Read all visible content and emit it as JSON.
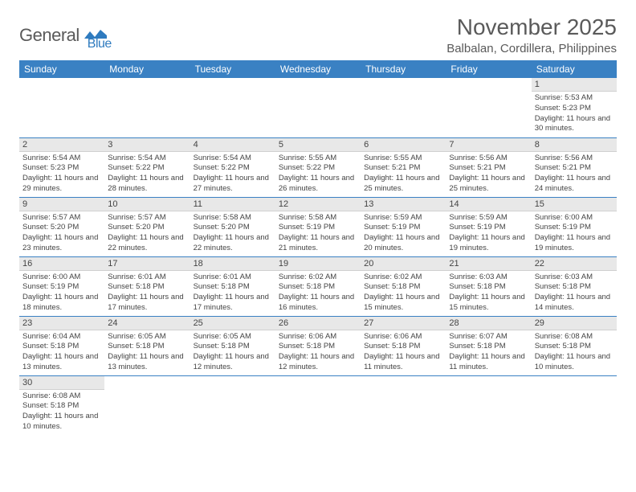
{
  "logo": {
    "text1": "General",
    "text2": "Blue",
    "flag_color": "#2f7bbf"
  },
  "title": "November 2025",
  "location": "Balbalan, Cordillera, Philippines",
  "headers": [
    "Sunday",
    "Monday",
    "Tuesday",
    "Wednesday",
    "Thursday",
    "Friday",
    "Saturday"
  ],
  "colors": {
    "header_bg": "#3a81c3",
    "header_text": "#ffffff",
    "daynum_bg": "#e8e8e8",
    "border": "#3a81c3",
    "text": "#444444",
    "title_text": "#5a5a5a"
  },
  "weeks": [
    [
      null,
      null,
      null,
      null,
      null,
      null,
      {
        "n": "1",
        "sunrise": "5:53 AM",
        "sunset": "5:23 PM",
        "dlh": "11",
        "dlm": "30"
      }
    ],
    [
      {
        "n": "2",
        "sunrise": "5:54 AM",
        "sunset": "5:23 PM",
        "dlh": "11",
        "dlm": "29"
      },
      {
        "n": "3",
        "sunrise": "5:54 AM",
        "sunset": "5:22 PM",
        "dlh": "11",
        "dlm": "28"
      },
      {
        "n": "4",
        "sunrise": "5:54 AM",
        "sunset": "5:22 PM",
        "dlh": "11",
        "dlm": "27"
      },
      {
        "n": "5",
        "sunrise": "5:55 AM",
        "sunset": "5:22 PM",
        "dlh": "11",
        "dlm": "26"
      },
      {
        "n": "6",
        "sunrise": "5:55 AM",
        "sunset": "5:21 PM",
        "dlh": "11",
        "dlm": "25"
      },
      {
        "n": "7",
        "sunrise": "5:56 AM",
        "sunset": "5:21 PM",
        "dlh": "11",
        "dlm": "25"
      },
      {
        "n": "8",
        "sunrise": "5:56 AM",
        "sunset": "5:21 PM",
        "dlh": "11",
        "dlm": "24"
      }
    ],
    [
      {
        "n": "9",
        "sunrise": "5:57 AM",
        "sunset": "5:20 PM",
        "dlh": "11",
        "dlm": "23"
      },
      {
        "n": "10",
        "sunrise": "5:57 AM",
        "sunset": "5:20 PM",
        "dlh": "11",
        "dlm": "22"
      },
      {
        "n": "11",
        "sunrise": "5:58 AM",
        "sunset": "5:20 PM",
        "dlh": "11",
        "dlm": "22"
      },
      {
        "n": "12",
        "sunrise": "5:58 AM",
        "sunset": "5:19 PM",
        "dlh": "11",
        "dlm": "21"
      },
      {
        "n": "13",
        "sunrise": "5:59 AM",
        "sunset": "5:19 PM",
        "dlh": "11",
        "dlm": "20"
      },
      {
        "n": "14",
        "sunrise": "5:59 AM",
        "sunset": "5:19 PM",
        "dlh": "11",
        "dlm": "19"
      },
      {
        "n": "15",
        "sunrise": "6:00 AM",
        "sunset": "5:19 PM",
        "dlh": "11",
        "dlm": "19"
      }
    ],
    [
      {
        "n": "16",
        "sunrise": "6:00 AM",
        "sunset": "5:19 PM",
        "dlh": "11",
        "dlm": "18"
      },
      {
        "n": "17",
        "sunrise": "6:01 AM",
        "sunset": "5:18 PM",
        "dlh": "11",
        "dlm": "17"
      },
      {
        "n": "18",
        "sunrise": "6:01 AM",
        "sunset": "5:18 PM",
        "dlh": "11",
        "dlm": "17"
      },
      {
        "n": "19",
        "sunrise": "6:02 AM",
        "sunset": "5:18 PM",
        "dlh": "11",
        "dlm": "16"
      },
      {
        "n": "20",
        "sunrise": "6:02 AM",
        "sunset": "5:18 PM",
        "dlh": "11",
        "dlm": "15"
      },
      {
        "n": "21",
        "sunrise": "6:03 AM",
        "sunset": "5:18 PM",
        "dlh": "11",
        "dlm": "15"
      },
      {
        "n": "22",
        "sunrise": "6:03 AM",
        "sunset": "5:18 PM",
        "dlh": "11",
        "dlm": "14"
      }
    ],
    [
      {
        "n": "23",
        "sunrise": "6:04 AM",
        "sunset": "5:18 PM",
        "dlh": "11",
        "dlm": "13"
      },
      {
        "n": "24",
        "sunrise": "6:05 AM",
        "sunset": "5:18 PM",
        "dlh": "11",
        "dlm": "13"
      },
      {
        "n": "25",
        "sunrise": "6:05 AM",
        "sunset": "5:18 PM",
        "dlh": "11",
        "dlm": "12"
      },
      {
        "n": "26",
        "sunrise": "6:06 AM",
        "sunset": "5:18 PM",
        "dlh": "11",
        "dlm": "12"
      },
      {
        "n": "27",
        "sunrise": "6:06 AM",
        "sunset": "5:18 PM",
        "dlh": "11",
        "dlm": "11"
      },
      {
        "n": "28",
        "sunrise": "6:07 AM",
        "sunset": "5:18 PM",
        "dlh": "11",
        "dlm": "11"
      },
      {
        "n": "29",
        "sunrise": "6:08 AM",
        "sunset": "5:18 PM",
        "dlh": "11",
        "dlm": "10"
      }
    ],
    [
      {
        "n": "30",
        "sunrise": "6:08 AM",
        "sunset": "5:18 PM",
        "dlh": "11",
        "dlm": "10"
      },
      null,
      null,
      null,
      null,
      null,
      null
    ]
  ],
  "labels": {
    "sunrise": "Sunrise:",
    "sunset": "Sunset:",
    "daylight_prefix": "Daylight:",
    "hours_word": "hours",
    "and_word": "and",
    "minutes_word": "minutes."
  }
}
